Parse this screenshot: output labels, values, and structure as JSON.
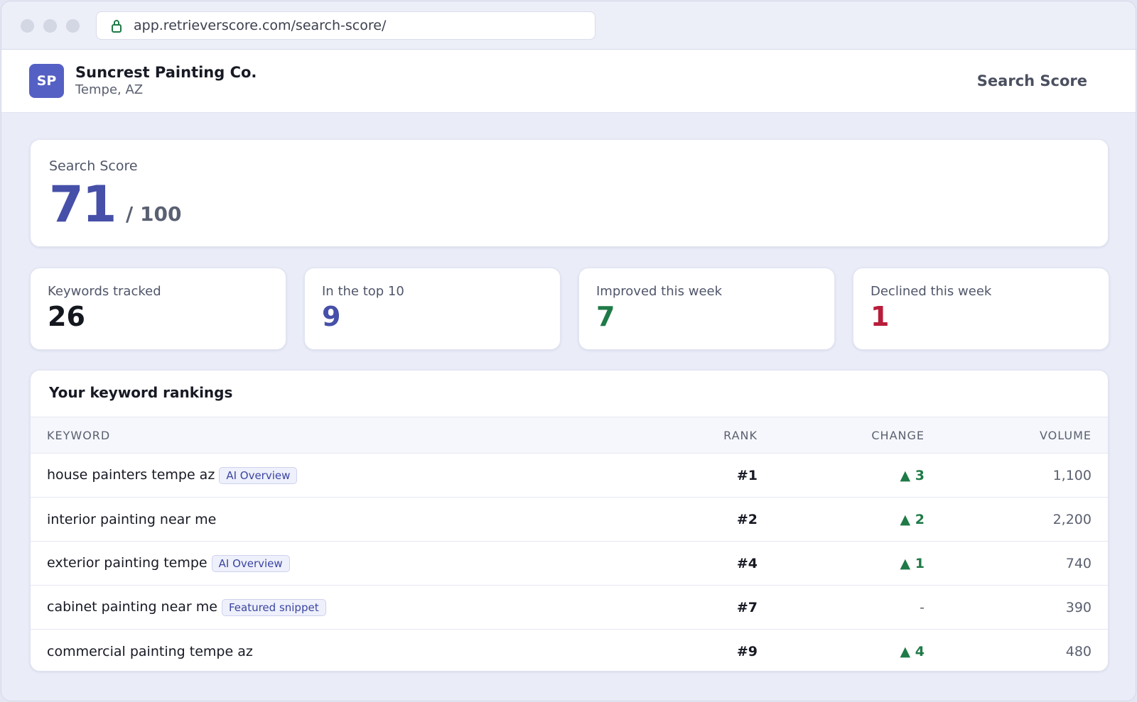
{
  "browser": {
    "url": "app.retrieverscore.com/search-score/"
  },
  "header": {
    "initials": "SP",
    "business": "Suncrest Painting Co.",
    "location": "Tempe, AZ",
    "nav": "Search Score"
  },
  "score": {
    "label": "Search Score",
    "value": "71",
    "max": "/ 100"
  },
  "stats": [
    {
      "label": "Keywords tracked",
      "value": "26",
      "color": "#15171f"
    },
    {
      "label": "In the top 10",
      "value": "9",
      "color": "#4650a8"
    },
    {
      "label": "Improved this week",
      "value": "7",
      "color": "#1f7a47"
    },
    {
      "label": "Declined this week",
      "value": "1",
      "color": "#b81d3a"
    }
  ],
  "rankings": {
    "title": "Your keyword rankings",
    "columns": [
      "KEYWORD",
      "RANK",
      "CHANGE",
      "VOLUME"
    ],
    "rows": [
      {
        "keyword": "house painters tempe az",
        "badge": "AI Overview",
        "rank": "#1",
        "change": "▲ 3",
        "volume": "1,100"
      },
      {
        "keyword": "interior painting near me",
        "rank": "#2",
        "change": "▲ 2",
        "volume": "2,200"
      },
      {
        "keyword": "exterior painting tempe",
        "badge": "AI Overview",
        "rank": "#4",
        "change": "▲ 1",
        "volume": "740"
      },
      {
        "keyword": "cabinet painting near me",
        "badge": "Featured snippet",
        "rank": "#7",
        "change": "-",
        "volume": "390"
      },
      {
        "keyword": "commercial painting tempe az",
        "rank": "#9",
        "change": "▲ 4",
        "volume": "480"
      }
    ]
  }
}
